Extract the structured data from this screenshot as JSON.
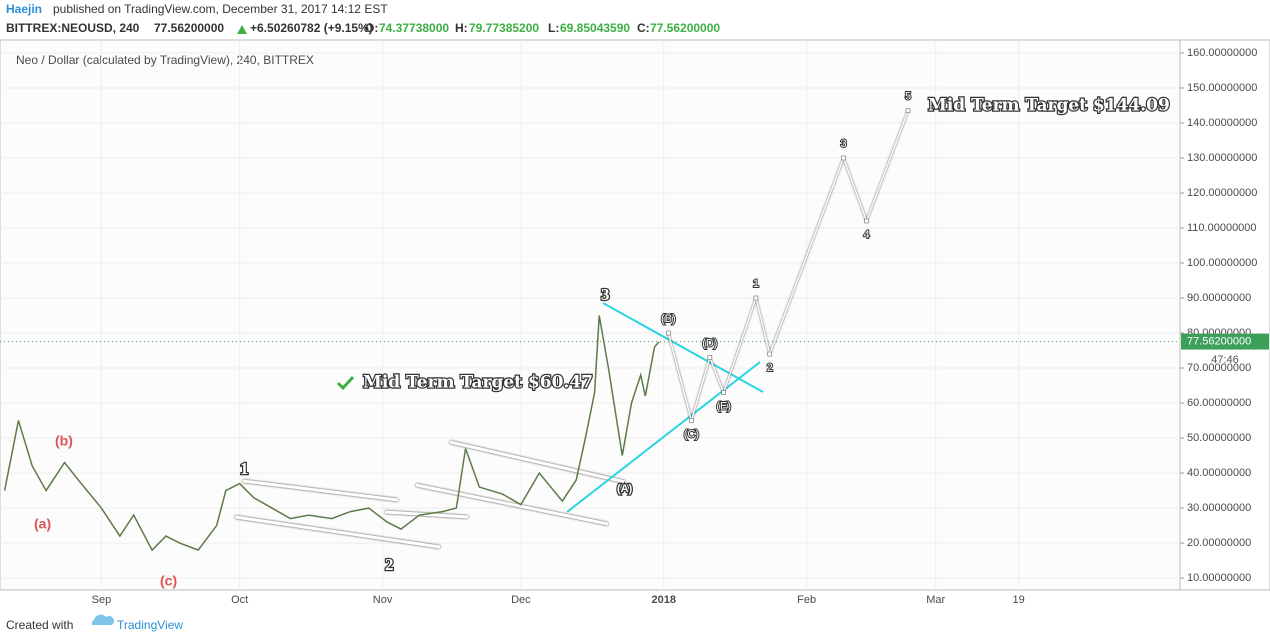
{
  "header": {
    "author": "Haejin",
    "published": "published on TradingView.com, December 31, 2017 14:12 EST",
    "symbol": "BITTREX:NEOUSD, 240",
    "price": "77.56200000",
    "change": "+6.50260782 (+9.15%)",
    "o_label": "O:",
    "o": "74.37738000",
    "h_label": "H:",
    "h": "79.77385200",
    "l_label": "L:",
    "l": "69.85043590",
    "c_label": "C:",
    "c": "77.56200000"
  },
  "footer": {
    "created": "Created with",
    "brand": "TradingView"
  },
  "chart_data": {
    "type": "line",
    "title": "Neo / Dollar (calculated by TradingView), 240, BITTREX",
    "xlim": [
      -22,
      234
    ],
    "ylim": [
      6.6,
      163.7
    ],
    "xticks": [
      {
        "value": 0,
        "label": "Sep"
      },
      {
        "value": 30,
        "label": "Oct"
      },
      {
        "value": 61,
        "label": "Nov"
      },
      {
        "value": 91,
        "label": "Dec"
      },
      {
        "value": 122,
        "label": "2018"
      },
      {
        "value": 153,
        "label": "Feb"
      },
      {
        "value": 181,
        "label": "Mar"
      },
      {
        "value": 199,
        "label": "19"
      }
    ],
    "yticks": [
      {
        "value": 10,
        "label": "10.00000000"
      },
      {
        "value": 20,
        "label": "20.00000000"
      },
      {
        "value": 30,
        "label": "30.00000000"
      },
      {
        "value": 40,
        "label": "40.00000000"
      },
      {
        "value": 50,
        "label": "50.00000000"
      },
      {
        "value": 60,
        "label": "60.00000000"
      },
      {
        "value": 70,
        "label": "70.00000000"
      },
      {
        "value": 80,
        "label": "80.00000000"
      },
      {
        "value": 90,
        "label": "90.00000000"
      },
      {
        "value": 100,
        "label": "100.00000000"
      },
      {
        "value": 110,
        "label": "110.00000000"
      },
      {
        "value": 120,
        "label": "120.00000000"
      },
      {
        "value": 130,
        "label": "130.00000000"
      },
      {
        "value": 140,
        "label": "140.00000000"
      },
      {
        "value": 150,
        "label": "150.00000000"
      },
      {
        "value": 160,
        "label": "160.00000000"
      }
    ],
    "grid": true,
    "series": [
      {
        "color": "#5d7a4a",
        "x": [
          -21,
          -18,
          -15,
          -12,
          -8,
          -5,
          0,
          4,
          7,
          11,
          14,
          17,
          21,
          25,
          27,
          30,
          33,
          37,
          41,
          45,
          50,
          54,
          58,
          62,
          65,
          69,
          74,
          77,
          79,
          82,
          87,
          91,
          95,
          100,
          103,
          105,
          107,
          108,
          110,
          113,
          115,
          117,
          118,
          120,
          121
        ],
        "values": [
          35,
          55,
          42,
          35,
          43,
          38,
          30,
          22,
          28,
          18,
          22,
          20,
          18,
          25,
          35,
          37,
          33,
          30,
          27,
          28,
          27,
          29,
          30,
          26,
          24,
          28,
          29,
          30,
          47,
          36,
          34,
          31,
          40,
          32,
          38,
          50,
          63,
          85,
          70,
          45,
          60,
          68,
          62,
          76,
          77.562
        ]
      },
      {
        "color": "#ffffff",
        "x": [
          123,
          128,
          132,
          135,
          142,
          145,
          161,
          166,
          175
        ],
        "values": [
          80,
          55,
          73,
          63,
          90,
          74,
          130,
          112,
          143.5
        ],
        "labels": [
          "(B)",
          "(C)",
          "(D)",
          "(E)",
          "1",
          "2",
          "3",
          "4",
          "5"
        ]
      }
    ],
    "last_price": {
      "value": 77.562,
      "label": "77.56200000"
    },
    "countdown": "47:46",
    "annotations": {
      "wave_1": "1",
      "wave_2": "2",
      "wave_3": "3",
      "a": "(a)",
      "b": "(b)",
      "c": "(c)",
      "A": "(A)",
      "target1": "Mid Term Target $60.47",
      "target2": "Mid Term Target $144.09"
    }
  }
}
